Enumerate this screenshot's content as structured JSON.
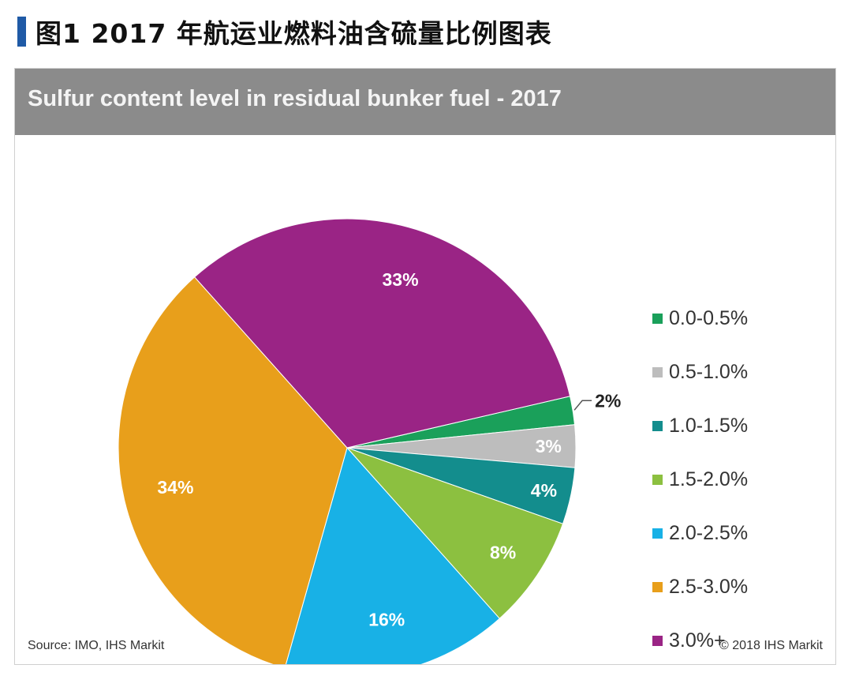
{
  "caption": "图1 2017 年航运业燃料油含硫量比例图表",
  "chart_data": {
    "type": "pie",
    "title": "Sulfur content level in residual bunker fuel - 2017",
    "legend_position": "right",
    "slices": [
      {
        "label": "0.0-0.5%",
        "value": 2,
        "display": "2%",
        "color": "#1aa05a"
      },
      {
        "label": "0.5-1.0%",
        "value": 3,
        "display": "3%",
        "color": "#bdbdbd"
      },
      {
        "label": "1.0-1.5%",
        "value": 4,
        "display": "4%",
        "color": "#138d8d"
      },
      {
        "label": "1.5-2.0%",
        "value": 8,
        "display": "8%",
        "color": "#8cc040"
      },
      {
        "label": "2.0-2.5%",
        "value": 16,
        "display": "16%",
        "color": "#18b1e6"
      },
      {
        "label": "2.5-3.0%",
        "value": 34,
        "display": "34%",
        "color": "#e89f1b"
      },
      {
        "label": "3.0%+",
        "value": 33,
        "display": "33%",
        "color": "#9a2485"
      }
    ]
  },
  "footer": {
    "source": "Source: IMO, IHS Markit",
    "copyright": "© 2018 IHS Markit"
  }
}
